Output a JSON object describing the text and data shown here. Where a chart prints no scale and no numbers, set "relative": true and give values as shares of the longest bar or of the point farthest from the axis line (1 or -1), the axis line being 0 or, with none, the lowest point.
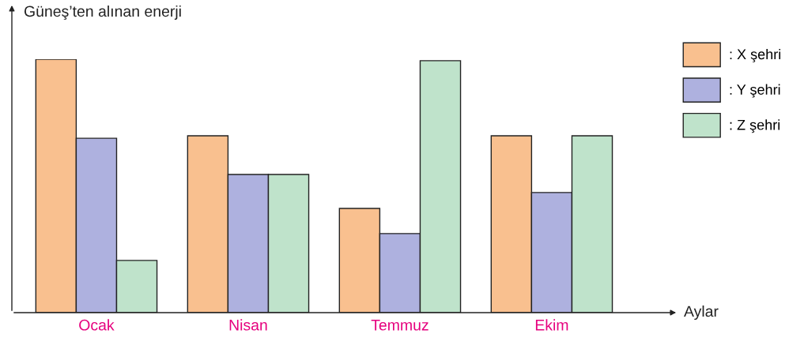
{
  "chart_data": {
    "type": "bar",
    "relative": true,
    "ylabel": "Güneş’ten alınan enerji",
    "xlabel": "Aylar",
    "categories": [
      "Ocak",
      "Nisan",
      "Temmuz",
      "Ekim"
    ],
    "series": [
      {
        "name": ": X şehri",
        "color": "#f9c08f",
        "values": [
          1.0,
          0.698,
          0.411,
          0.698
        ]
      },
      {
        "name": ": Y şehri",
        "color": "#aeb1df",
        "values": [
          0.688,
          0.545,
          0.312,
          0.474
        ]
      },
      {
        "name": ": Z şehri",
        "color": "#bfe3cb",
        "values": [
          0.206,
          0.545,
          0.994,
          0.698
        ]
      }
    ],
    "legend": "right",
    "grid": false
  }
}
